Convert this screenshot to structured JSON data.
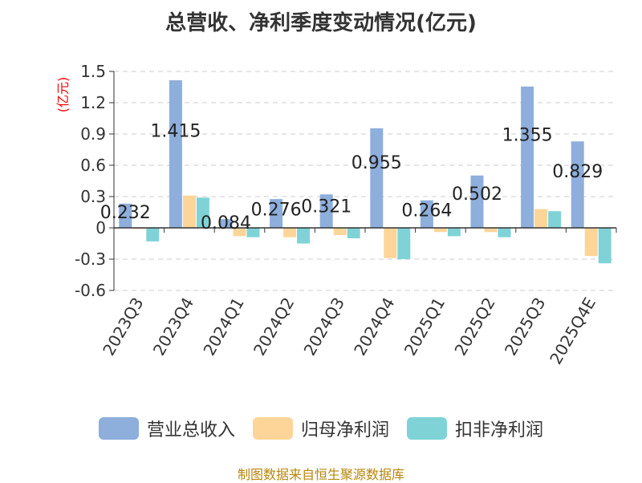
{
  "chart_data": {
    "type": "bar",
    "title": "总营收、净利季度变动情况(亿元)",
    "ylabel": "(亿元)",
    "ylim": [
      -0.6,
      1.5
    ],
    "yticks": [
      "1.5",
      "1.2",
      "0.9",
      "0.6",
      "0.3",
      "0",
      "-0.3",
      "-0.6"
    ],
    "yticks_values": [
      1.5,
      1.2,
      0.9,
      0.6,
      0.3,
      0,
      -0.3,
      -0.6
    ],
    "grid": true,
    "legend": "bottom",
    "categories": [
      "2023Q3",
      "2023Q4",
      "2024Q1",
      "2024Q2",
      "2024Q3",
      "2024Q4",
      "2025Q1",
      "2025Q2",
      "2025Q3",
      "2025Q4E"
    ],
    "series": [
      {
        "name": "营业总收入",
        "color": "#8eaedc",
        "values": [
          0.232,
          1.415,
          0.084,
          0.276,
          0.321,
          0.955,
          0.264,
          0.502,
          1.355,
          0.829
        ]
      },
      {
        "name": "归母净利润",
        "color": "#fdd598",
        "values": [
          -0.01,
          0.31,
          -0.08,
          -0.09,
          -0.07,
          -0.29,
          -0.04,
          -0.04,
          0.18,
          -0.27
        ]
      },
      {
        "name": "扣非净利润",
        "color": "#7fd3d7",
        "values": [
          -0.13,
          0.29,
          -0.09,
          -0.15,
          -0.1,
          -0.3,
          -0.08,
          -0.09,
          0.16,
          -0.34
        ]
      }
    ],
    "data_labels": [
      "0.232",
      "1.415",
      "0.084",
      "0.276",
      "0.321",
      "0.955",
      "0.264",
      "0.502",
      "1.355",
      "0.829"
    ]
  },
  "footer": {
    "source": "制图数据来自恒生聚源数据库"
  }
}
